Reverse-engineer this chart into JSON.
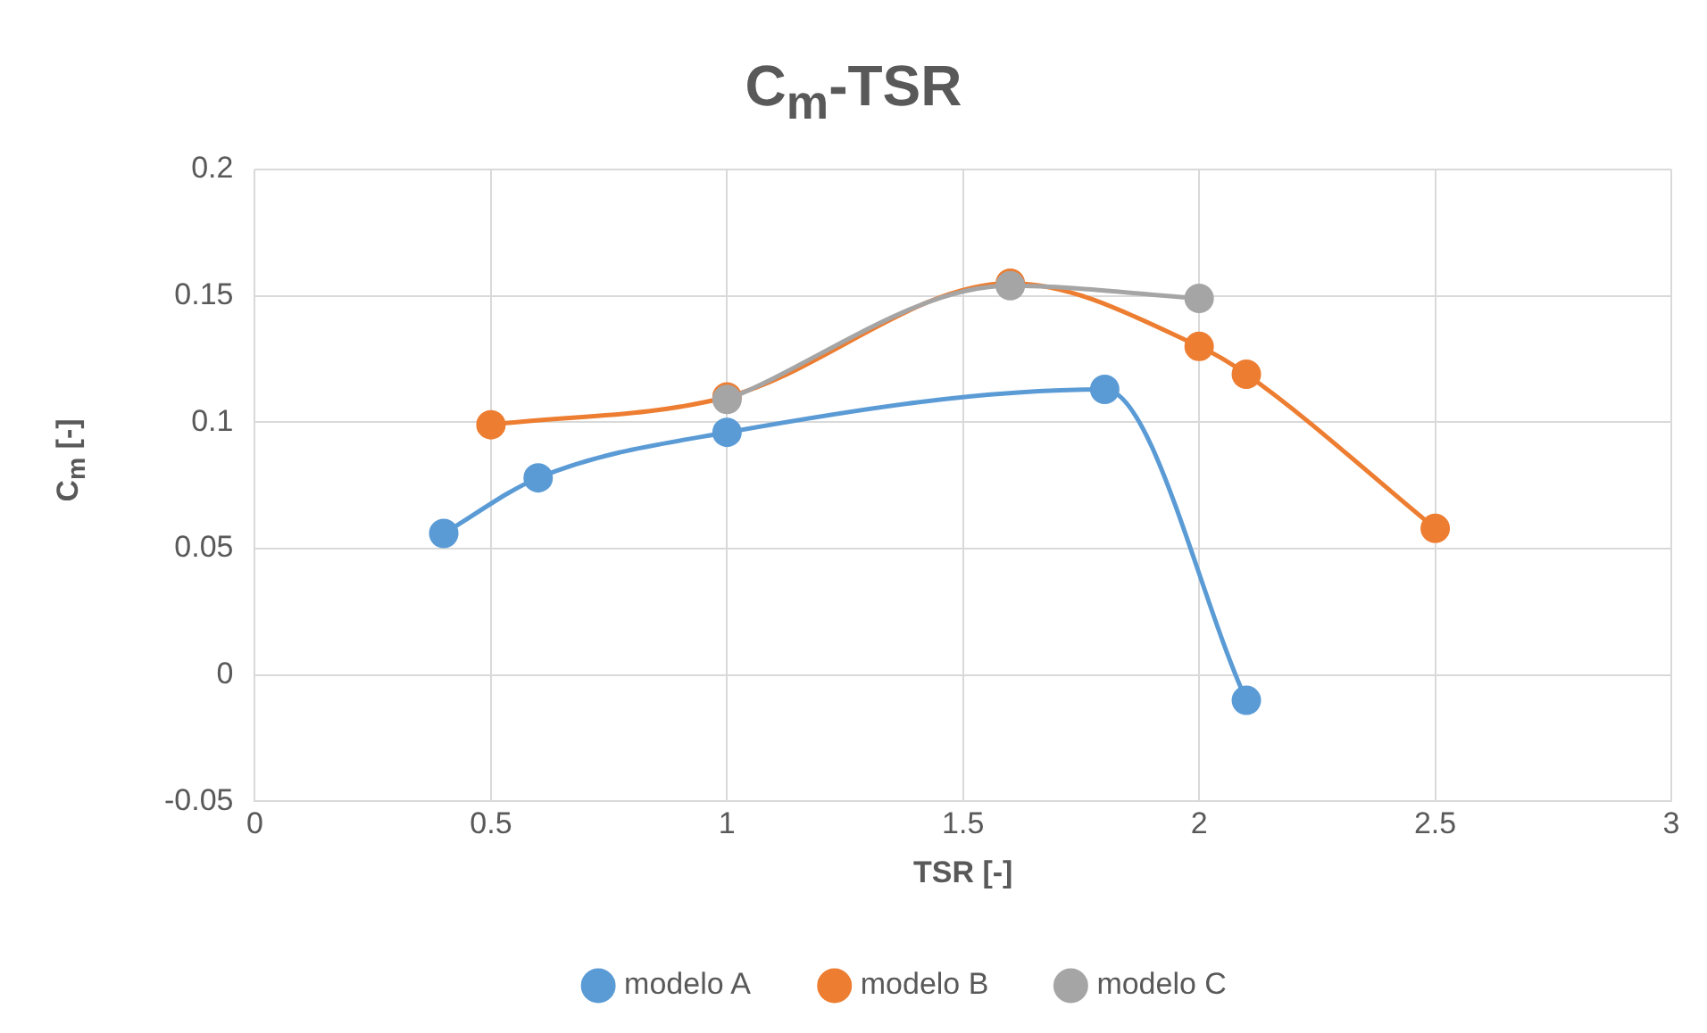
{
  "chart_data": {
    "type": "line",
    "title": "C$_{m}$-TSR",
    "xlabel": "TSR [-]",
    "ylabel": "C$_{m}$ [-]",
    "xlim": [
      0,
      3
    ],
    "xticks": [
      0,
      0.5,
      1,
      1.5,
      2,
      2.5,
      3
    ],
    "ylim": [
      -0.05,
      0.2
    ],
    "yticks": [
      -0.05,
      0,
      0.05,
      0.1,
      0.15,
      0.2
    ],
    "grid": true,
    "legend": "bottom",
    "marker": "circle",
    "series": [
      {
        "name": "modelo A",
        "color": "#5b9bd5",
        "x": [
          0.4,
          0.6,
          1,
          1.8,
          2.1
        ],
        "values": [
          0.056,
          0.078,
          0.096,
          0.113,
          -0.01
        ]
      },
      {
        "name": "modelo B",
        "color": "#ed7d31",
        "x": [
          0.5,
          1,
          1.6,
          2,
          2.1,
          2.5
        ],
        "values": [
          0.099,
          0.11,
          0.155,
          0.13,
          0.119,
          0.058
        ]
      },
      {
        "name": "modelo C",
        "color": "#a5a5a5",
        "x": [
          1,
          1.6,
          2
        ],
        "values": [
          0.109,
          0.154,
          0.149
        ]
      }
    ]
  }
}
